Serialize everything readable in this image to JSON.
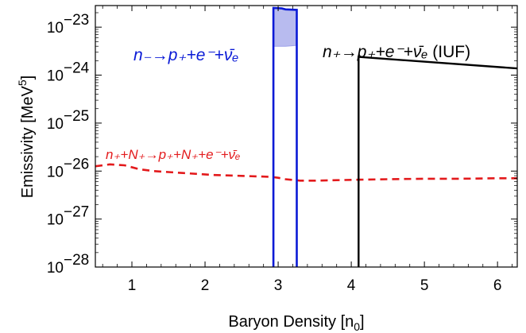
{
  "chart_data": {
    "type": "line",
    "xlabel": "Baryon Density [n",
    "xlabel_sub": "0",
    "xlabel_end": "]",
    "ylabel": "Emissivity [MeV",
    "ylabel_sup": "5",
    "ylabel_end": "]",
    "xlim": [
      0.5,
      6.27
    ],
    "ylim_log10": [
      -28,
      -22.55
    ],
    "x_scale": "linear",
    "y_scale": "log",
    "grid": false,
    "x_ticks": [
      {
        "v": 1,
        "label": "1"
      },
      {
        "v": 2,
        "label": "2"
      },
      {
        "v": 3,
        "label": "3"
      },
      {
        "v": 4,
        "label": "4"
      },
      {
        "v": 5,
        "label": "5"
      },
      {
        "v": 6,
        "label": "6"
      }
    ],
    "y_ticks": [
      {
        "p": -28,
        "base": "10",
        "exp": "−28"
      },
      {
        "p": -27,
        "base": "10",
        "exp": "−27"
      },
      {
        "p": -26,
        "base": "10",
        "exp": "−26"
      },
      {
        "p": -25,
        "base": "10",
        "exp": "−25"
      },
      {
        "p": -24,
        "base": "10",
        "exp": "−24"
      },
      {
        "p": -23,
        "base": "10",
        "exp": "−23"
      }
    ],
    "series": [
      {
        "style": "dashed",
        "color": "#e31a1c",
        "x": [
          0.5,
          0.7,
          0.9,
          1.1,
          1.3,
          1.5,
          1.7,
          1.9,
          2.1,
          2.3,
          2.5,
          2.7,
          2.9,
          3.0,
          3.1,
          3.3,
          3.5,
          3.8,
          4.1,
          4.5,
          5.0,
          5.5,
          6.0,
          6.27
        ],
        "y_log10": [
          -25.9,
          -25.86,
          -25.88,
          -25.96,
          -26.0,
          -26.02,
          -26.04,
          -26.06,
          -26.08,
          -26.09,
          -26.1,
          -26.11,
          -26.12,
          -26.14,
          -26.17,
          -26.2,
          -26.2,
          -26.19,
          -26.18,
          -26.17,
          -26.16,
          -26.16,
          -26.15,
          -26.15
        ]
      },
      {
        "style": "solid",
        "color": "#0a1ad6",
        "fill": "#b8bbef",
        "x_left": 2.935,
        "x_right": 3.255,
        "upper_x": [
          2.935,
          3.05,
          3.1,
          3.255
        ],
        "upper_y_log10": [
          -22.6,
          -22.61,
          -22.63,
          -22.64
        ],
        "lower_y_log10": [
          -23.4,
          -23.4,
          -23.4,
          -23.38
        ]
      },
      {
        "style": "solid",
        "color": "#000000",
        "x": [
          4.1,
          4.1,
          6.27
        ],
        "y_log10": [
          -28.3,
          -23.62,
          -23.86
        ]
      }
    ],
    "annotations": [
      {
        "id": "blue",
        "color": "#0a1ad6",
        "text": "n₋→p₊+e⁻+ν̄ₑ"
      },
      {
        "id": "black",
        "color": "#000000",
        "text": "n₊→p₊+e⁻+ν̄ₑ",
        "suffix": " (IUF)"
      },
      {
        "id": "red",
        "color": "#e31a1c",
        "text": "n₊+N₊→p₊+N₊+e⁻+ν̄ₑ"
      }
    ]
  }
}
